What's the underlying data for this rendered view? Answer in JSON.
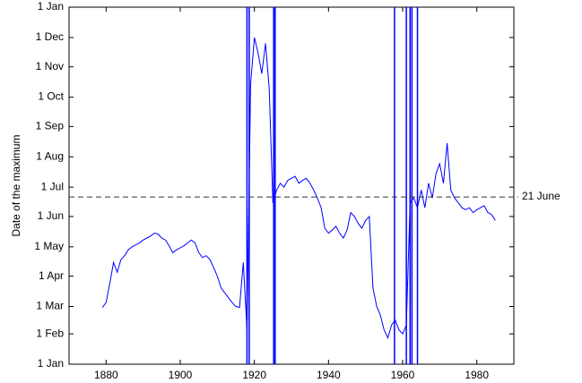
{
  "chart_data": {
    "type": "line",
    "title": "",
    "xlabel": "",
    "ylabel": "Date of the maximum",
    "xlim": [
      1870,
      1990
    ],
    "ylim": [
      "1 Jan",
      "1 Jan (next year)"
    ],
    "x_ticks": [
      "1880",
      "1900",
      "1920",
      "1940",
      "1960",
      "1980"
    ],
    "y_ticks": [
      "1 Jan",
      "1 Feb",
      "1 Mar",
      "1 Apr",
      "1 May",
      "1 Jun",
      "1 Jul",
      "1 Aug",
      "1 Sep",
      "1 Oct",
      "1 Nov",
      "1 Dec",
      "1 Jan"
    ],
    "grid": false,
    "line_color": "#0000ff",
    "series": [
      {
        "points": [
          [
            "1879",
            "28 Feb"
          ],
          [
            "1880",
            "5 Mar"
          ],
          [
            "1881",
            "25 Mar"
          ],
          [
            "1882",
            "15 Apr"
          ],
          [
            "1883",
            "5 Apr"
          ],
          [
            "1884",
            "18 Apr"
          ],
          [
            "1885",
            "22 Apr"
          ],
          [
            "1886",
            "28 Apr"
          ],
          [
            "1887",
            "1 May"
          ],
          [
            "1888",
            "3 May"
          ],
          [
            "1889",
            "5 May"
          ],
          [
            "1890",
            "8 May"
          ],
          [
            "1891",
            "10 May"
          ],
          [
            "1892",
            "12 May"
          ],
          [
            "1893",
            "15 May"
          ],
          [
            "1894",
            "14 May"
          ],
          [
            "1895",
            "10 May"
          ],
          [
            "1896",
            "8 May"
          ],
          [
            "1897",
            "2 May"
          ],
          [
            "1898",
            "25 Apr"
          ],
          [
            "1899",
            "28 Apr"
          ],
          [
            "1900",
            "30 Apr"
          ],
          [
            "1901",
            "2 May"
          ],
          [
            "1902",
            "5 May"
          ],
          [
            "1903",
            "8 May"
          ],
          [
            "1904",
            "5 May"
          ],
          [
            "1905",
            "25 Apr"
          ],
          [
            "1906",
            "20 Apr"
          ],
          [
            "1907",
            "22 Apr"
          ],
          [
            "1908",
            "18 Apr"
          ],
          [
            "1909",
            "10 Apr"
          ],
          [
            "1910",
            "1 Apr"
          ],
          [
            "1911",
            "20 Mar"
          ],
          [
            "1912",
            "15 Mar"
          ],
          [
            "1913",
            "10 Mar"
          ],
          [
            "1914",
            "5 Mar"
          ],
          [
            "1915",
            "1 Mar"
          ],
          [
            "1916",
            "28 Feb"
          ],
          [
            "1917",
            "15 Apr"
          ],
          [
            "1918",
            "5 Feb"
          ],
          [
            "1919",
            "15 Oct"
          ],
          [
            "1920",
            "1 Dec"
          ],
          [
            "1921",
            "15 Nov"
          ],
          [
            "1922",
            "25 Oct"
          ],
          [
            "1923",
            "25 Nov"
          ],
          [
            "1924",
            "10 Oct"
          ],
          [
            "1925",
            "15 Jun"
          ],
          [
            "1926",
            "28 Jun"
          ],
          [
            "1927",
            "5 Jul"
          ],
          [
            "1928",
            "1 Jul"
          ],
          [
            "1929",
            "8 Jul"
          ],
          [
            "1930",
            "10 Jul"
          ],
          [
            "1931",
            "12 Jul"
          ],
          [
            "1932",
            "5 Jul"
          ],
          [
            "1933",
            "8 Jul"
          ],
          [
            "1934",
            "10 Jul"
          ],
          [
            "1935",
            "5 Jul"
          ],
          [
            "1936",
            "28 Jun"
          ],
          [
            "1937",
            "20 Jun"
          ],
          [
            "1938",
            "10 Jun"
          ],
          [
            "1939",
            "20 May"
          ],
          [
            "1940",
            "15 May"
          ],
          [
            "1941",
            "18 May"
          ],
          [
            "1942",
            "22 May"
          ],
          [
            "1943",
            "15 May"
          ],
          [
            "1944",
            "10 May"
          ],
          [
            "1945",
            "18 May"
          ],
          [
            "1946",
            "5 Jun"
          ],
          [
            "1947",
            "1 Jun"
          ],
          [
            "1948",
            "25 May"
          ],
          [
            "1949",
            "20 May"
          ],
          [
            "1950",
            "28 May"
          ],
          [
            "1951",
            "1 Jun"
          ],
          [
            "1952",
            "20 Mar"
          ],
          [
            "1953",
            "1 Mar"
          ],
          [
            "1954",
            "20 Feb"
          ],
          [
            "1955",
            "5 Feb"
          ],
          [
            "1956",
            "28 Jan"
          ],
          [
            "1957",
            "10 Feb"
          ],
          [
            "1958",
            "15 Feb"
          ],
          [
            "1959",
            "5 Feb"
          ],
          [
            "1960",
            "1 Feb"
          ],
          [
            "1961",
            "10 Feb"
          ],
          [
            "1962",
            "15 Jun"
          ],
          [
            "1963",
            "20 Jun"
          ],
          [
            "1964",
            "10 Jun"
          ],
          [
            "1965",
            "28 Jun"
          ],
          [
            "1966",
            "10 Jun"
          ],
          [
            "1967",
            "5 Jul"
          ],
          [
            "1968",
            "20 Jun"
          ],
          [
            "1969",
            "15 Jul"
          ],
          [
            "1970",
            "25 Jul"
          ],
          [
            "1971",
            "5 Jul"
          ],
          [
            "1972",
            "15 Aug"
          ],
          [
            "1973",
            "28 Jun"
          ],
          [
            "1974",
            "20 Jun"
          ],
          [
            "1975",
            "15 Jun"
          ],
          [
            "1976",
            "10 Jun"
          ],
          [
            "1977",
            "8 Jun"
          ],
          [
            "1978",
            "10 Jun"
          ],
          [
            "1979",
            "5 Jun"
          ],
          [
            "1980",
            "8 Jun"
          ],
          [
            "1981",
            "10 Jun"
          ],
          [
            "1982",
            "12 Jun"
          ],
          [
            "1983",
            "5 Jun"
          ],
          [
            "1984",
            "3 Jun"
          ],
          [
            "1985",
            "28 May"
          ]
        ]
      }
    ],
    "vertical_lines": [
      "1918",
      "1918.6",
      "1925.2",
      "1925.6",
      "1957.8",
      "1961",
      "1962",
      "1962.5",
      "1964"
    ],
    "reference_line": {
      "value": "21 June",
      "label": "21 June",
      "style": "dashed"
    }
  }
}
